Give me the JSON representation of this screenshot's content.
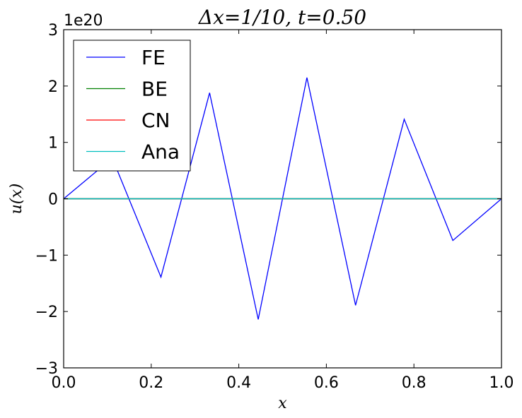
{
  "chart_data": {
    "type": "line",
    "title": "Δx=1/10, t=0.50",
    "xlabel": "x",
    "ylabel": "u(x)",
    "y_offset_label": "1e20",
    "xlim": [
      0.0,
      1.0
    ],
    "ylim": [
      -3,
      3
    ],
    "y_scale_note": "values in units of 1e20",
    "x_ticks": [
      0.0,
      0.2,
      0.4,
      0.6,
      0.8,
      1.0
    ],
    "x_tick_labels": [
      "0.0",
      "0.2",
      "0.4",
      "0.6",
      "0.8",
      "1.0"
    ],
    "y_ticks": [
      -3,
      -2,
      -1,
      0,
      1,
      2,
      3
    ],
    "y_tick_labels": [
      "−3",
      "−2",
      "−1",
      "0",
      "1",
      "2",
      "3"
    ],
    "grid": false,
    "legend_position": "top-left",
    "x": [
      0.0,
      0.1111,
      0.2222,
      0.3333,
      0.4444,
      0.5556,
      0.6667,
      0.7778,
      0.8889,
      1.0
    ],
    "series": [
      {
        "name": "FE",
        "color": "#0000ff",
        "values": [
          0.0,
          0.72,
          -1.39,
          1.88,
          -2.14,
          2.15,
          -1.89,
          1.41,
          -0.74,
          0.0
        ]
      },
      {
        "name": "BE",
        "color": "#008000",
        "values": [
          0,
          0,
          0,
          0,
          0,
          0,
          0,
          0,
          0,
          0
        ]
      },
      {
        "name": "CN",
        "color": "#ff0000",
        "values": [
          0,
          0,
          0,
          0,
          0,
          0,
          0,
          0,
          0,
          0
        ]
      },
      {
        "name": "Ana",
        "color": "#00bfbf",
        "values": [
          0,
          0,
          0,
          0,
          0,
          0,
          0,
          0,
          0,
          0
        ]
      }
    ]
  }
}
